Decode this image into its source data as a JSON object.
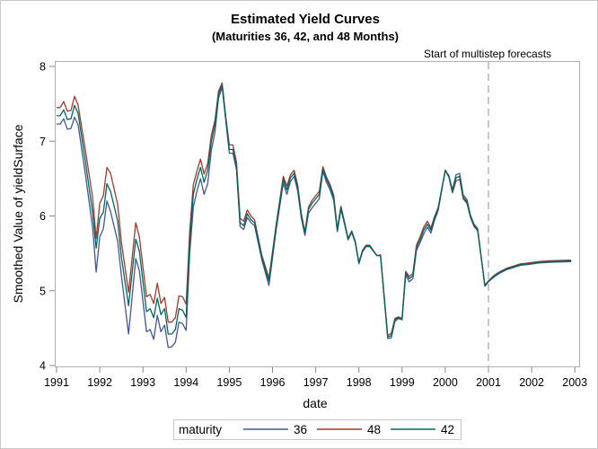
{
  "chart_data": {
    "type": "line",
    "title": "Estimated Yield Curves",
    "subtitle": "(Maturities 36, 42, and 48 Months)",
    "xlabel": "date",
    "ylabel": "Smoothed Value of yieldSurface",
    "xlim": [
      "1991-01",
      "2003-01"
    ],
    "ylim": [
      4,
      8
    ],
    "x_ticks": [
      "1991",
      "1992",
      "1993",
      "1994",
      "1995",
      "1996",
      "1997",
      "1998",
      "1999",
      "2000",
      "2001",
      "2002",
      "2003"
    ],
    "y_ticks": [
      "4",
      "5",
      "6",
      "7",
      "8"
    ],
    "grid": false,
    "legend": {
      "title": "maturity",
      "placement": "bottom"
    },
    "reference_line": {
      "x": "2001-01",
      "label": "Start of multistep forecasts",
      "style": "dashed",
      "color": "#AAAAAA"
    },
    "x": [
      "1991-01",
      "1991-02",
      "1991-03",
      "1991-04",
      "1991-05",
      "1991-06",
      "1991-07",
      "1991-09",
      "1991-11",
      "1991-12",
      "1992-01",
      "1992-02",
      "1992-03",
      "1992-04",
      "1992-06",
      "1992-07",
      "1992-09",
      "1992-11",
      "1992-12",
      "1993-02",
      "1993-03",
      "1993-04",
      "1993-05",
      "1993-06",
      "1993-07",
      "1993-08",
      "1993-09",
      "1993-10",
      "1993-11",
      "1993-12",
      "1994-01",
      "1994-02",
      "1994-03",
      "1994-04",
      "1994-05",
      "1994-06",
      "1994-07",
      "1994-08",
      "1994-09",
      "1994-10",
      "1994-11",
      "1994-12",
      "1995-01",
      "1995-02",
      "1995-03",
      "1995-04",
      "1995-05",
      "1995-06",
      "1995-07",
      "1995-08",
      "1995-10",
      "1995-12",
      "1996-02",
      "1996-04",
      "1996-05",
      "1996-06",
      "1996-07",
      "1996-08",
      "1996-09",
      "1996-10",
      "1996-11",
      "1996-12",
      "1997-02",
      "1997-03",
      "1997-04",
      "1997-05",
      "1997-06",
      "1997-07",
      "1997-08",
      "1997-09",
      "1997-10",
      "1997-11",
      "1997-12",
      "1998-01",
      "1998-02",
      "1998-03",
      "1998-04",
      "1998-06",
      "1998-07",
      "1998-09",
      "1998-10",
      "1998-11",
      "1998-12",
      "1999-01",
      "1999-02",
      "1999-03",
      "1999-04",
      "1999-05",
      "1999-06",
      "1999-07",
      "1999-08",
      "1999-09",
      "1999-10",
      "1999-11",
      "1999-12",
      "2000-01",
      "2000-02",
      "2000-03",
      "2000-04",
      "2000-05",
      "2000-06",
      "2000-07",
      "2000-08",
      "2000-09",
      "2000-10",
      "2000-12",
      "2001-01",
      "2001-02",
      "2001-03",
      "2001-04",
      "2001-06",
      "2001-08",
      "2001-10",
      "2001-12",
      "2002-03",
      "2002-06",
      "2002-12"
    ],
    "series": [
      {
        "name": "36",
        "color": "#445694",
        "values": [
          7.23,
          7.23,
          7.3,
          7.16,
          7.17,
          7.32,
          7.22,
          6.56,
          5.85,
          5.25,
          5.72,
          5.83,
          6.2,
          6.06,
          5.66,
          5.2,
          4.42,
          5.43,
          5.27,
          4.45,
          4.48,
          4.35,
          4.67,
          4.45,
          4.54,
          4.24,
          4.25,
          4.31,
          4.58,
          4.56,
          4.47,
          5.5,
          6.12,
          6.33,
          6.5,
          6.29,
          6.43,
          6.88,
          7.12,
          7.58,
          7.72,
          7.28,
          6.84,
          6.84,
          6.62,
          5.86,
          5.82,
          5.98,
          5.91,
          5.87,
          5.42,
          5.07,
          5.81,
          6.44,
          6.29,
          6.46,
          6.53,
          6.33,
          5.97,
          5.74,
          6.04,
          6.11,
          6.23,
          6.6,
          6.45,
          6.35,
          6.21,
          5.79,
          6.09,
          5.89,
          5.68,
          5.78,
          5.64,
          5.36,
          5.52,
          5.59,
          5.59,
          5.47,
          5.47,
          4.36,
          4.37,
          4.59,
          4.63,
          4.61,
          5.21,
          5.12,
          5.16,
          5.54,
          5.64,
          5.76,
          5.85,
          5.77,
          5.94,
          6.07,
          6.34,
          6.61,
          6.54,
          6.35,
          6.55,
          6.57,
          6.28,
          6.22,
          6.01,
          5.89,
          5.83,
          5.06,
          5.12,
          5.16,
          5.2,
          5.23,
          5.28,
          5.31,
          5.34,
          5.35,
          5.37,
          5.38,
          5.39
        ]
      },
      {
        "name": "48",
        "color": "#A23A2E",
        "values": [
          7.45,
          7.45,
          7.53,
          7.4,
          7.41,
          7.6,
          7.48,
          6.88,
          6.25,
          5.7,
          6.17,
          6.27,
          6.65,
          6.57,
          6.15,
          5.65,
          4.98,
          5.91,
          5.72,
          4.92,
          4.95,
          4.83,
          5.1,
          4.83,
          4.91,
          4.58,
          4.58,
          4.64,
          4.93,
          4.92,
          4.82,
          5.8,
          6.42,
          6.6,
          6.76,
          6.56,
          6.7,
          7.08,
          7.28,
          7.67,
          7.78,
          7.33,
          6.95,
          6.95,
          6.72,
          5.97,
          5.93,
          6.08,
          6.0,
          5.95,
          5.48,
          5.17,
          5.88,
          6.53,
          6.4,
          6.55,
          6.61,
          6.41,
          6.03,
          5.79,
          6.12,
          6.21,
          6.33,
          6.66,
          6.52,
          6.42,
          6.28,
          5.83,
          6.13,
          5.92,
          5.7,
          5.8,
          5.66,
          5.38,
          5.54,
          5.61,
          5.61,
          5.47,
          5.48,
          4.4,
          4.43,
          4.63,
          4.65,
          4.63,
          5.26,
          5.19,
          5.23,
          5.61,
          5.72,
          5.85,
          5.93,
          5.84,
          5.99,
          6.11,
          6.36,
          6.61,
          6.52,
          6.31,
          6.47,
          6.49,
          6.23,
          6.17,
          5.98,
          5.86,
          5.8,
          5.07,
          5.13,
          5.18,
          5.22,
          5.25,
          5.3,
          5.33,
          5.36,
          5.37,
          5.39,
          5.4,
          5.41
        ]
      },
      {
        "name": "42",
        "color": "#01665E",
        "values": [
          7.34,
          7.34,
          7.42,
          7.29,
          7.3,
          7.48,
          7.37,
          6.73,
          6.05,
          5.57,
          5.97,
          6.05,
          6.43,
          6.33,
          5.93,
          5.45,
          4.8,
          5.69,
          5.53,
          4.72,
          4.76,
          4.64,
          4.9,
          4.68,
          4.76,
          4.42,
          4.42,
          4.48,
          4.76,
          4.74,
          4.64,
          5.65,
          6.29,
          6.49,
          6.65,
          6.45,
          6.61,
          7.0,
          7.22,
          7.63,
          7.75,
          7.31,
          6.89,
          6.89,
          6.65,
          5.91,
          5.87,
          6.03,
          5.95,
          5.91,
          5.45,
          5.13,
          5.85,
          6.49,
          6.35,
          6.51,
          6.57,
          6.37,
          6.0,
          5.77,
          6.09,
          6.17,
          6.29,
          6.63,
          6.49,
          6.39,
          6.25,
          5.81,
          6.11,
          5.91,
          5.69,
          5.79,
          5.65,
          5.37,
          5.53,
          5.6,
          5.6,
          5.47,
          5.47,
          4.38,
          4.4,
          4.61,
          4.64,
          4.62,
          5.24,
          5.16,
          5.2,
          5.58,
          5.68,
          5.81,
          5.89,
          5.81,
          5.97,
          6.09,
          6.35,
          6.61,
          6.53,
          6.33,
          6.51,
          6.53,
          6.25,
          6.19,
          5.99,
          5.87,
          5.81,
          5.07,
          5.13,
          5.17,
          5.21,
          5.24,
          5.29,
          5.32,
          5.35,
          5.36,
          5.38,
          5.39,
          5.4
        ]
      }
    ]
  }
}
